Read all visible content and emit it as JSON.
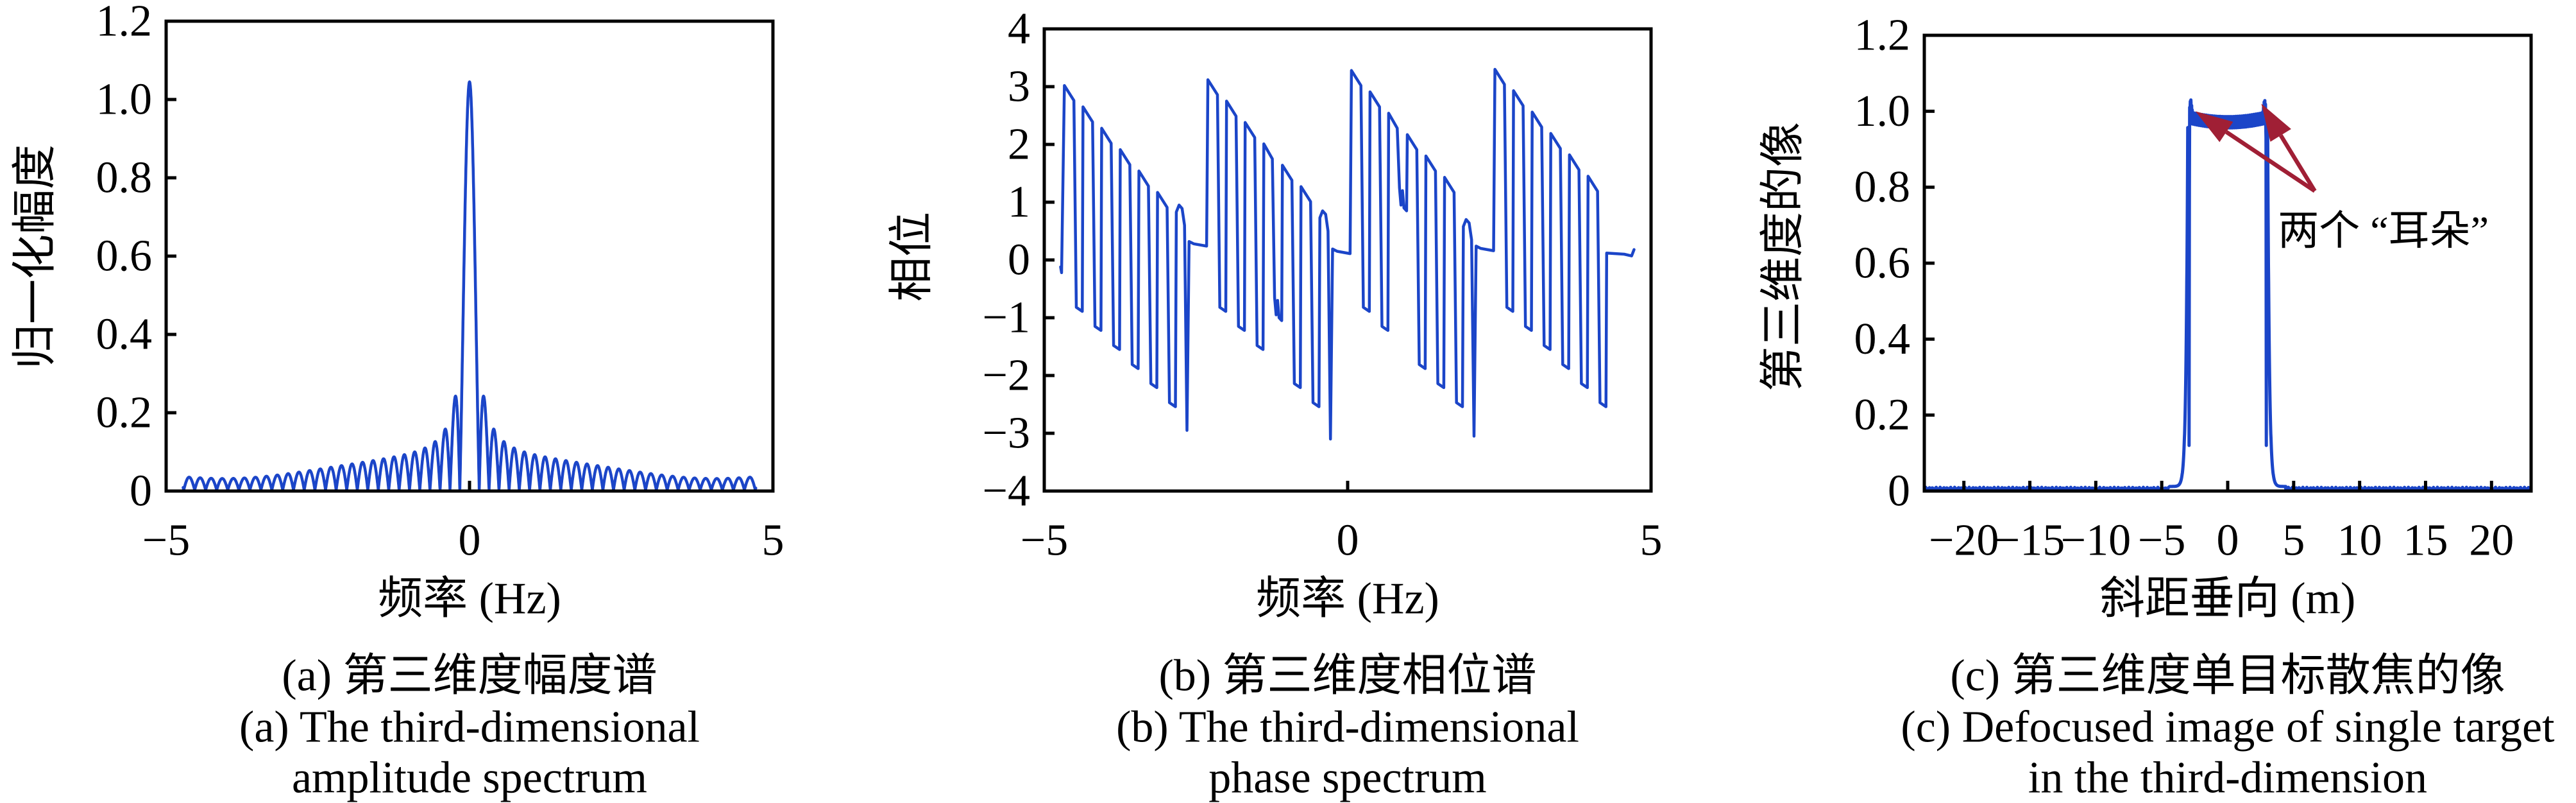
{
  "figure": {
    "background": "#ffffff",
    "axis_color": "#000000",
    "curve_color": "#1b45c8",
    "arrow_color": "#a01f35"
  },
  "panels": {
    "a": {
      "ylabel": "归一化幅度",
      "xlabel": "频率 (Hz)",
      "caption_zh": "(a) 第三维度幅度谱",
      "caption_en1": "(a) The third-dimensional",
      "caption_en2": "amplitude spectrum"
    },
    "b": {
      "ylabel": "相位",
      "xlabel": "频率 (Hz)",
      "caption_zh": "(b) 第三维度相位谱",
      "caption_en1": "(b) The third-dimensional",
      "caption_en2": "phase spectrum"
    },
    "c": {
      "ylabel": "第三维度的像",
      "xlabel": "斜距垂向 (m)",
      "caption_zh": "(c) 第三维度单目标散焦的像",
      "caption_en1": "(c) Defocused image of single target",
      "caption_en2": "in the third-dimension",
      "annotation": "两个 “耳朵”"
    }
  },
  "chart_data": [
    {
      "id": "amplitude_spectrum",
      "type": "line",
      "title": "(a) 第三维度幅度谱 / The third-dimensional amplitude spectrum",
      "xlabel": "频率 (Hz)",
      "ylabel": "归一化幅度",
      "xlim": [
        -5,
        5
      ],
      "ylim": [
        0,
        1.2
      ],
      "xticks": [
        {
          "v": -5,
          "label": "−5"
        },
        {
          "v": 0,
          "label": "0"
        },
        {
          "v": 5,
          "label": "5"
        }
      ],
      "yticks": [
        {
          "v": 0,
          "label": "0"
        },
        {
          "v": 0.2,
          "label": "0.2"
        },
        {
          "v": 0.4,
          "label": "0.4"
        },
        {
          "v": 0.6,
          "label": "0.6"
        },
        {
          "v": 0.8,
          "label": "0.8"
        },
        {
          "v": 1.0,
          "label": "1.0"
        },
        {
          "v": 1.2,
          "label": "1.2"
        }
      ],
      "grid": false,
      "legend": null,
      "data_x_range": [
        -4.72,
        4.72
      ],
      "peak": {
        "x": 0,
        "y": 1.05
      },
      "first_sidelobes": {
        "x": 0.24,
        "y": 0.21
      },
      "edge_ripple_amplitude": 0.05,
      "generator": {
        "kind": "abs_sinc_plus_ripple",
        "sinc_scale": 6.0,
        "ripple_amp": 0.042,
        "ripple_freq": 2.82,
        "floor": 0.003,
        "step": 0.0025
      }
    },
    {
      "id": "phase_spectrum",
      "type": "line",
      "title": "(b) 第三维度相位谱 / The third-dimensional phase spectrum",
      "xlabel": "频率 (Hz)",
      "ylabel": "相位",
      "xlim": [
        -5,
        5
      ],
      "ylim": [
        -4,
        4
      ],
      "xticks": [
        {
          "v": -5,
          "label": "−5"
        },
        {
          "v": 0,
          "label": "0"
        },
        {
          "v": 5,
          "label": "5"
        }
      ],
      "yticks": [
        {
          "v": -4,
          "label": "−4"
        },
        {
          "v": -3,
          "label": "−3"
        },
        {
          "v": -2,
          "label": "−2"
        },
        {
          "v": -1,
          "label": "−1"
        },
        {
          "v": 0,
          "label": "0"
        },
        {
          "v": 1,
          "label": "1"
        },
        {
          "v": 2,
          "label": "2"
        },
        {
          "v": 3,
          "label": "3"
        },
        {
          "v": 4,
          "label": "4"
        }
      ],
      "grid": false,
      "legend": null,
      "data_x_range": [
        -4.73,
        4.72
      ],
      "wrapped_phase_range": [
        -3.14,
        3.14
      ],
      "generator": {
        "kind": "wrapped_phase_teeth",
        "group_period": 2.365,
        "teeth_per_group": 6,
        "tooth_width": 0.307,
        "top_step": 0.37,
        "top_sag": 0.26,
        "bottom0": -0.82,
        "bottom_step": 0.33,
        "start_level": -0.12,
        "groups": [
          {
            "start": -4.73,
            "rise_top": 3.02,
            "mid_glitch": null,
            "end": {
              "hump": 0.95,
              "spike": -2.95,
              "ledge": 0.28
            }
          },
          {
            "start": -2.365,
            "rise_top": 3.12,
            "mid_glitch": {
              "tooth": 3,
              "level": -0.95
            },
            "end": {
              "hump": 0.85,
              "spike": -3.1,
              "ledge": 0.15
            }
          },
          {
            "start": 0.0,
            "rise_top": 3.28,
            "mid_glitch": {
              "tooth": 2,
              "level": 0.95
            },
            "end": {
              "hump": 0.7,
              "spike": -3.05,
              "ledge": 0.2
            }
          },
          {
            "start": 2.365,
            "rise_top": 3.3,
            "mid_glitch": null,
            "end": {
              "tail_level": 0.1
            }
          }
        ]
      }
    },
    {
      "id": "defocused_image",
      "type": "line",
      "title": "(c) 第三维度单目标散焦的像 / Defocused image of single target in the third-dimension",
      "xlabel": "斜距垂向 (m)",
      "ylabel": "第三维度的像",
      "xlim": [
        -23,
        23
      ],
      "ylim": [
        0,
        1.2
      ],
      "xticks": [
        {
          "v": -20,
          "label": "−20"
        },
        {
          "v": -15,
          "label": "−15"
        },
        {
          "v": -10,
          "label": "−10"
        },
        {
          "v": -5,
          "label": "−5"
        },
        {
          "v": 0,
          "label": "0"
        },
        {
          "v": 5,
          "label": "5"
        },
        {
          "v": 10,
          "label": "10"
        },
        {
          "v": 15,
          "label": "15"
        },
        {
          "v": 20,
          "label": "20"
        }
      ],
      "yticks": [
        {
          "v": 0,
          "label": "0"
        },
        {
          "v": 0.2,
          "label": "0.2"
        },
        {
          "v": 0.4,
          "label": "0.4"
        },
        {
          "v": 0.6,
          "label": "0.6"
        },
        {
          "v": 0.8,
          "label": "0.8"
        },
        {
          "v": 1.0,
          "label": "1.0"
        },
        {
          "v": 1.2,
          "label": "1.2"
        }
      ],
      "grid": false,
      "legend": null,
      "pulse_edges": [
        -3.0,
        3.0
      ],
      "top_level": 0.97,
      "ear_positions": [
        -2.8,
        2.8
      ],
      "ear_peak": 1.03,
      "inner_spike": {
        "offset": 2.92,
        "bottom": 0.12
      },
      "baseline_level": 0.006,
      "annotation": {
        "text": "两个 “耳朵”",
        "text_pos": [
          11.8,
          0.685
        ],
        "arrow_origin": [
          6.6,
          0.79
        ],
        "arrow_tips": [
          [
            -2.45,
            1.0
          ],
          [
            2.55,
            1.02
          ]
        ],
        "meaning": "two ears of the defocused response"
      },
      "generator": {
        "kind": "defocused_pulse",
        "band_mid": 0.971,
        "band_bow": 0.013,
        "band_ripple": 0.015,
        "ripple_period": 0.05,
        "ear_sigma": 0.09,
        "ear_amp": 0.034,
        "toe_decay": 0.125
      }
    }
  ]
}
